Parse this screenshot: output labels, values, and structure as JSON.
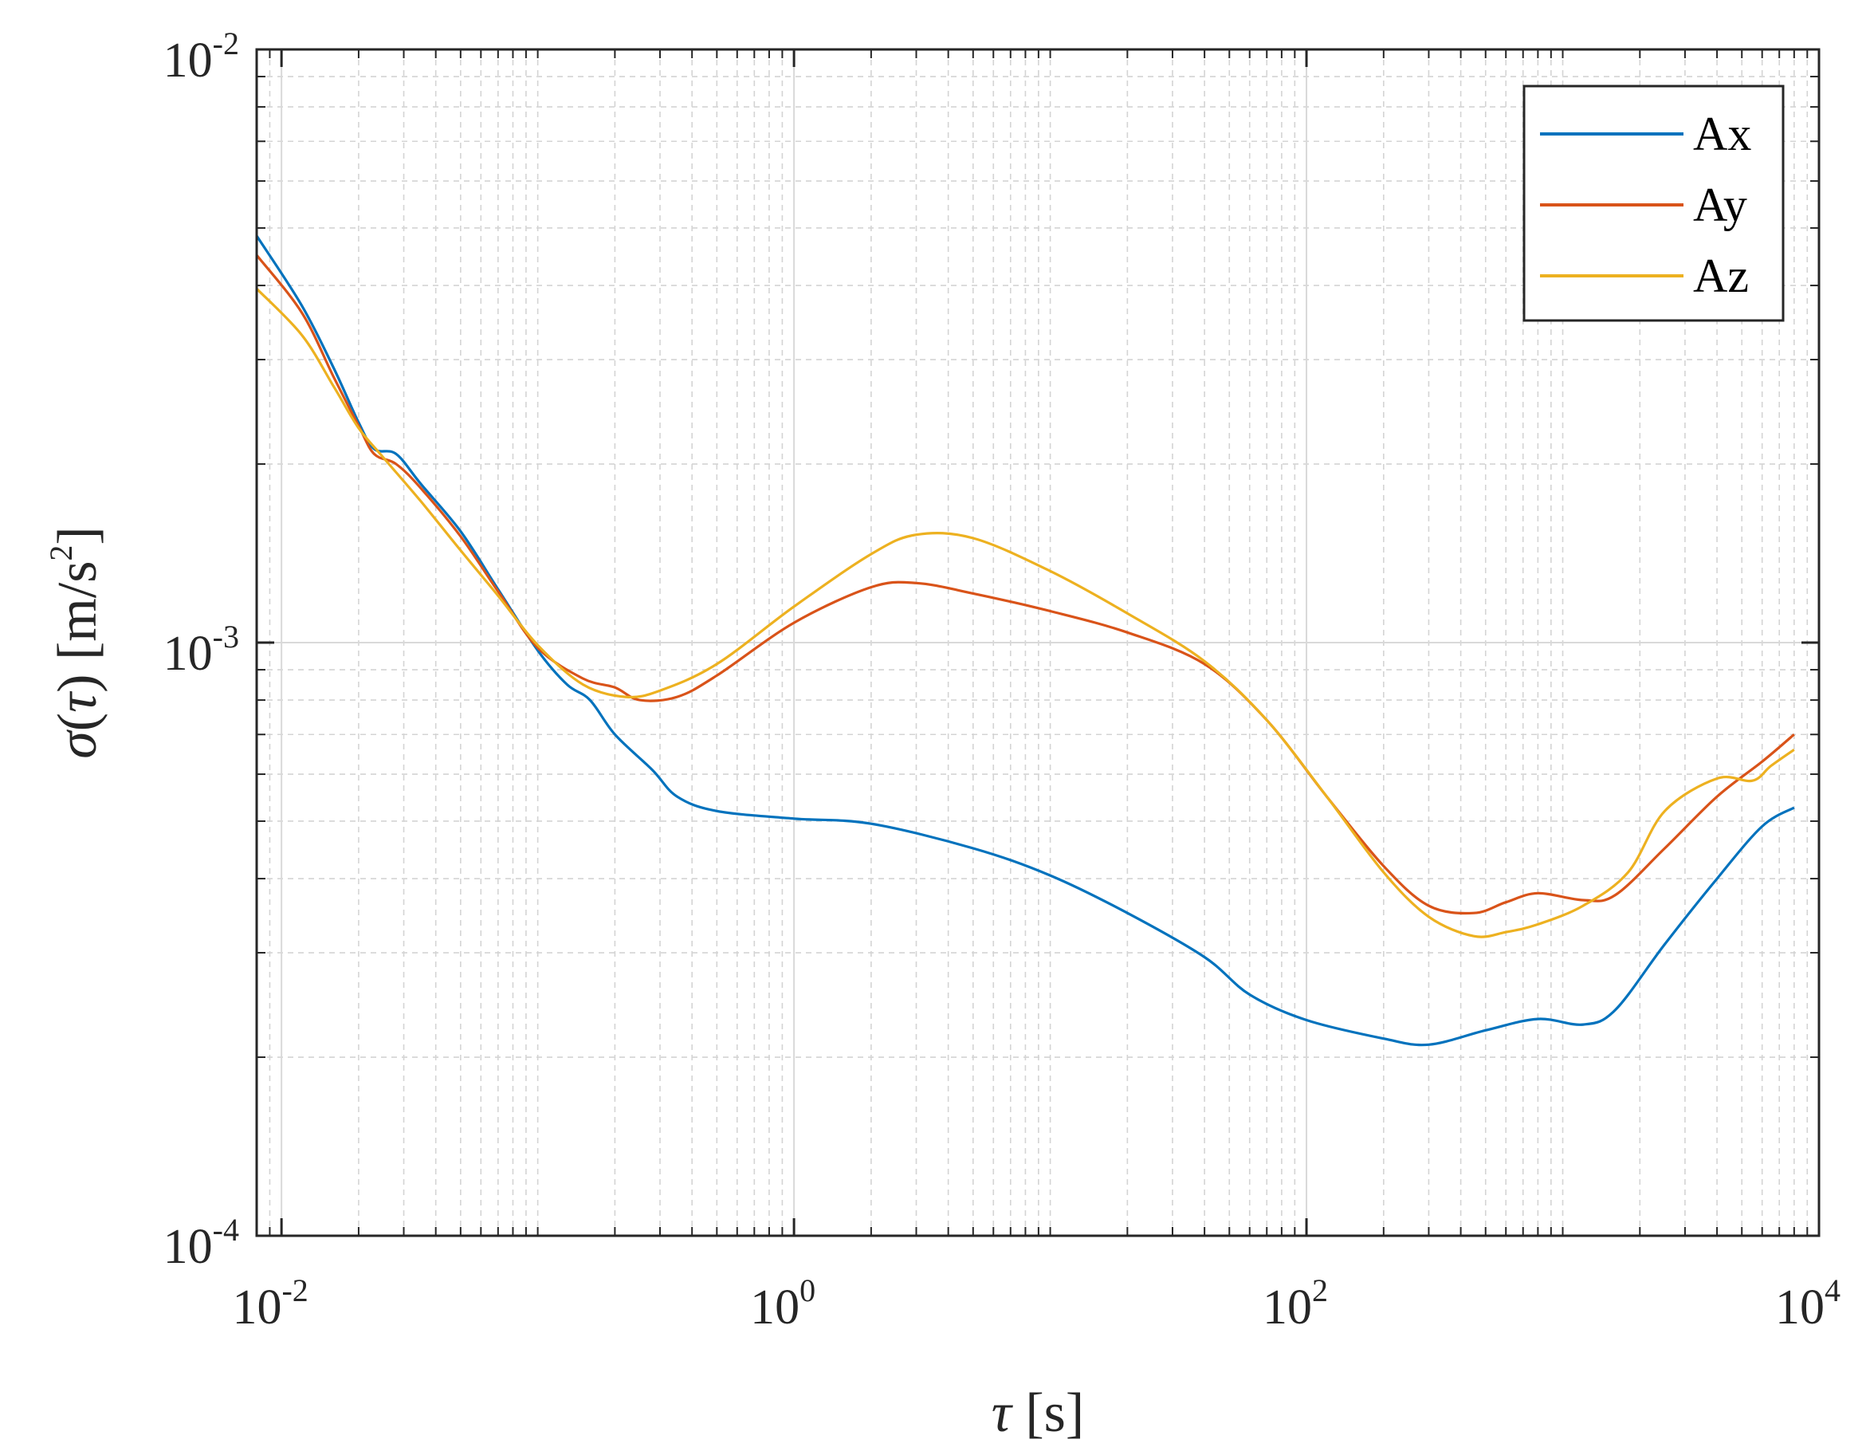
{
  "chart_data": {
    "type": "line",
    "x_scale": "log",
    "y_scale": "log",
    "xlim": [
      0.008,
      10000
    ],
    "ylim": [
      0.0001,
      0.01
    ],
    "grid": "on (major and minor)",
    "legend_position": "top-right",
    "xlabel": {
      "symbol": "τ",
      "rest": " [s]"
    },
    "ylabel": {
      "symbol1": "σ",
      "mid1": "(",
      "symbol2": "τ",
      "mid2": ") [m/s",
      "sup": "2",
      "end": "]"
    },
    "x_ticks": [
      {
        "value": 0.01,
        "base": "10",
        "exp": "-2"
      },
      {
        "value": 1,
        "base": "10",
        "exp": "0"
      },
      {
        "value": 100,
        "base": "10",
        "exp": "2"
      },
      {
        "value": 10000,
        "base": "10",
        "exp": "4"
      }
    ],
    "y_ticks": [
      {
        "value": 0.0001,
        "base": "10",
        "exp": "-4"
      },
      {
        "value": 0.001,
        "base": "10",
        "exp": "-3"
      },
      {
        "value": 0.01,
        "base": "10",
        "exp": "-2"
      }
    ],
    "series": [
      {
        "name": "Ax",
        "color": "#0072BD",
        "points": [
          [
            0.008,
            0.00485
          ],
          [
            0.012,
            0.0037
          ],
          [
            0.016,
            0.0029
          ],
          [
            0.02,
            0.00235
          ],
          [
            0.023,
            0.00212
          ],
          [
            0.028,
            0.00208
          ],
          [
            0.035,
            0.00185
          ],
          [
            0.05,
            0.00154
          ],
          [
            0.07,
            0.00123
          ],
          [
            0.1,
            0.00097
          ],
          [
            0.13,
            0.00085
          ],
          [
            0.16,
            0.0008
          ],
          [
            0.2,
            0.0007
          ],
          [
            0.28,
            0.00061
          ],
          [
            0.35,
            0.00055
          ],
          [
            0.5,
            0.00052
          ],
          [
            1.0,
            0.000505
          ],
          [
            2.0,
            0.000495
          ],
          [
            5.0,
            0.00045
          ],
          [
            10,
            0.000405
          ],
          [
            20,
            0.00035
          ],
          [
            40,
            0.000295
          ],
          [
            60,
            0.000255
          ],
          [
            100,
            0.000231
          ],
          [
            200,
            0.000215
          ],
          [
            300,
            0.00021
          ],
          [
            500,
            0.000222
          ],
          [
            800,
            0.000232
          ],
          [
            1200,
            0.000227
          ],
          [
            1600,
            0.00024
          ],
          [
            2500,
            0.00031
          ],
          [
            4000,
            0.0004
          ],
          [
            6000,
            0.00049
          ],
          [
            8000,
            0.000527
          ]
        ]
      },
      {
        "name": "Ay",
        "color": "#D95319",
        "points": [
          [
            0.008,
            0.0045
          ],
          [
            0.012,
            0.0036
          ],
          [
            0.016,
            0.0028
          ],
          [
            0.02,
            0.00232
          ],
          [
            0.023,
            0.00208
          ],
          [
            0.028,
            0.002
          ],
          [
            0.035,
            0.00182
          ],
          [
            0.05,
            0.00151
          ],
          [
            0.07,
            0.00122
          ],
          [
            0.1,
            0.00098
          ],
          [
            0.15,
            0.00087
          ],
          [
            0.2,
            0.00084
          ],
          [
            0.25,
            0.0008
          ],
          [
            0.35,
            0.00081
          ],
          [
            0.5,
            0.00088
          ],
          [
            1.0,
            0.00108
          ],
          [
            2.0,
            0.00124
          ],
          [
            3.0,
            0.00126
          ],
          [
            5.0,
            0.00121
          ],
          [
            10,
            0.00113
          ],
          [
            20,
            0.00104
          ],
          [
            40,
            0.00092
          ],
          [
            70,
            0.00074
          ],
          [
            120,
            0.00055
          ],
          [
            200,
            0.00042
          ],
          [
            300,
            0.00036
          ],
          [
            450,
            0.00035
          ],
          [
            600,
            0.000365
          ],
          [
            800,
            0.000378
          ],
          [
            1200,
            0.000368
          ],
          [
            1600,
            0.000375
          ],
          [
            2500,
            0.00045
          ],
          [
            4000,
            0.00055
          ],
          [
            6000,
            0.00063
          ],
          [
            8000,
            0.0007
          ]
        ]
      },
      {
        "name": "Az",
        "color": "#EDB120",
        "points": [
          [
            0.008,
            0.00395
          ],
          [
            0.012,
            0.0033
          ],
          [
            0.016,
            0.0027
          ],
          [
            0.02,
            0.0023
          ],
          [
            0.025,
            0.00205
          ],
          [
            0.035,
            0.00173
          ],
          [
            0.05,
            0.00143
          ],
          [
            0.07,
            0.0012
          ],
          [
            0.1,
            0.00099
          ],
          [
            0.15,
            0.00085
          ],
          [
            0.22,
            0.00081
          ],
          [
            0.3,
            0.00083
          ],
          [
            0.5,
            0.00092
          ],
          [
            1.0,
            0.00115
          ],
          [
            2.0,
            0.00141
          ],
          [
            3.0,
            0.00152
          ],
          [
            5.0,
            0.0015
          ],
          [
            10,
            0.00132
          ],
          [
            20,
            0.00112
          ],
          [
            40,
            0.00093
          ],
          [
            70,
            0.00074
          ],
          [
            120,
            0.00055
          ],
          [
            200,
            0.00041
          ],
          [
            300,
            0.000345
          ],
          [
            450,
            0.00032
          ],
          [
            600,
            0.000325
          ],
          [
            800,
            0.000335
          ],
          [
            1200,
            0.00036
          ],
          [
            1800,
            0.00041
          ],
          [
            2500,
            0.00052
          ],
          [
            4000,
            0.00059
          ],
          [
            5500,
            0.000585
          ],
          [
            6500,
            0.00062
          ],
          [
            8000,
            0.00066
          ]
        ]
      }
    ]
  }
}
